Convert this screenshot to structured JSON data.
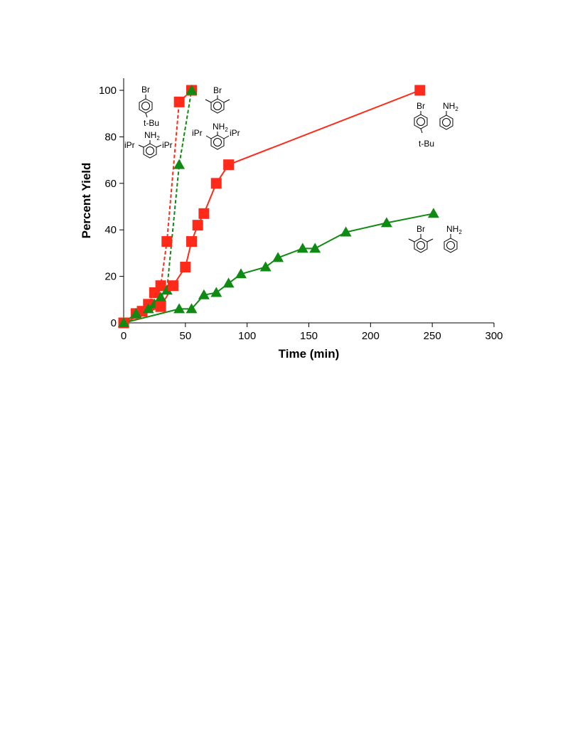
{
  "chart_data": {
    "type": "line",
    "title": "",
    "xlabel": "Time (min)",
    "ylabel": "Percent Yield",
    "xlim": [
      0,
      300
    ],
    "ylim": [
      0,
      100
    ],
    "xticks": [
      0,
      50,
      100,
      150,
      200,
      250,
      300
    ],
    "yticks": [
      0,
      20,
      40,
      60,
      80,
      100
    ],
    "grid": false,
    "legend": "none",
    "series": [
      {
        "marker": "square",
        "line": "dashed",
        "color": "#ff2a1a",
        "x": [
          0,
          10,
          15,
          20,
          25,
          30,
          35,
          45,
          55
        ],
        "y": [
          0,
          4,
          5,
          8,
          13,
          16,
          35,
          95,
          100
        ]
      },
      {
        "marker": "triangle",
        "line": "dashed",
        "color": "#0f8a12",
        "x": [
          0,
          10,
          20,
          25,
          30,
          35,
          45,
          55
        ],
        "y": [
          0,
          4,
          6,
          8,
          11,
          14,
          68,
          100
        ]
      },
      {
        "marker": "square",
        "line": "solid",
        "color": "#ff2a1a",
        "x": [
          0,
          30,
          40,
          50,
          55,
          60,
          65,
          75,
          85,
          240
        ],
        "y": [
          0,
          7,
          16,
          24,
          35,
          42,
          47,
          60,
          68,
          100
        ]
      },
      {
        "marker": "triangle",
        "line": "solid",
        "color": "#0f8a12",
        "x": [
          0,
          45,
          55,
          65,
          75,
          85,
          95,
          115,
          125,
          145,
          155,
          180,
          213,
          251
        ],
        "y": [
          0,
          6,
          6,
          12,
          13,
          17,
          21,
          24,
          28,
          32,
          32,
          39,
          43,
          47
        ]
      }
    ],
    "annotations": {
      "br": "Br",
      "tbu": "t-Bu",
      "nh2": "NH2",
      "nh2_base": "NH",
      "nh2_sub": "2",
      "ipr": "iPr"
    }
  }
}
